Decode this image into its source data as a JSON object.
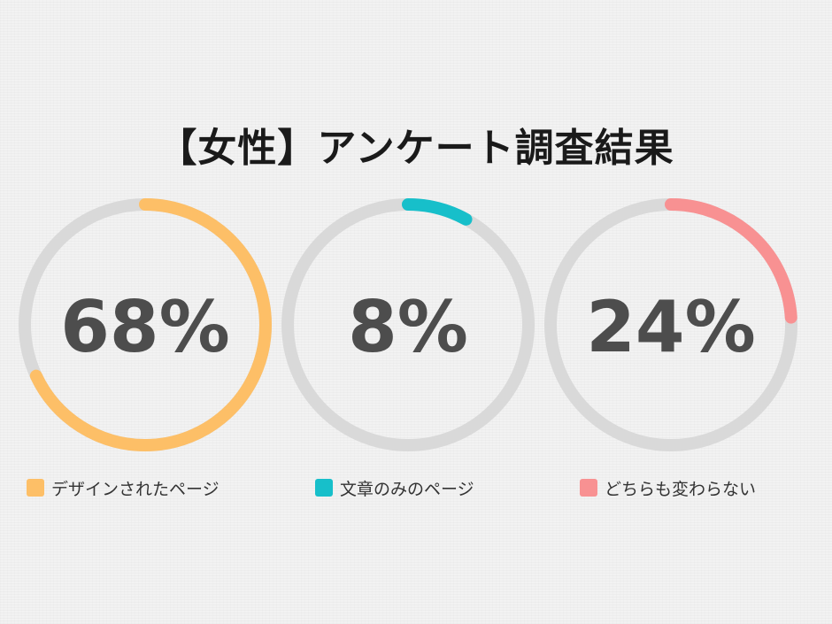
{
  "title": "【女性】アンケート調査結果",
  "colors": {
    "track": "#d9d9d9",
    "text": "#4d4d4d"
  },
  "chart_data": {
    "type": "pie",
    "title": "【女性】アンケート調査結果",
    "unit": "%",
    "segments": [
      {
        "label": "デザインされたページ",
        "value": 68,
        "display": "68%",
        "color": "#fdbf67"
      },
      {
        "label": "文章のみのページ",
        "value": 8,
        "display": "8%",
        "color": "#17bfca"
      },
      {
        "label": "どちらも変わらない",
        "value": 24,
        "display": "24%",
        "color": "#f89192"
      }
    ]
  }
}
